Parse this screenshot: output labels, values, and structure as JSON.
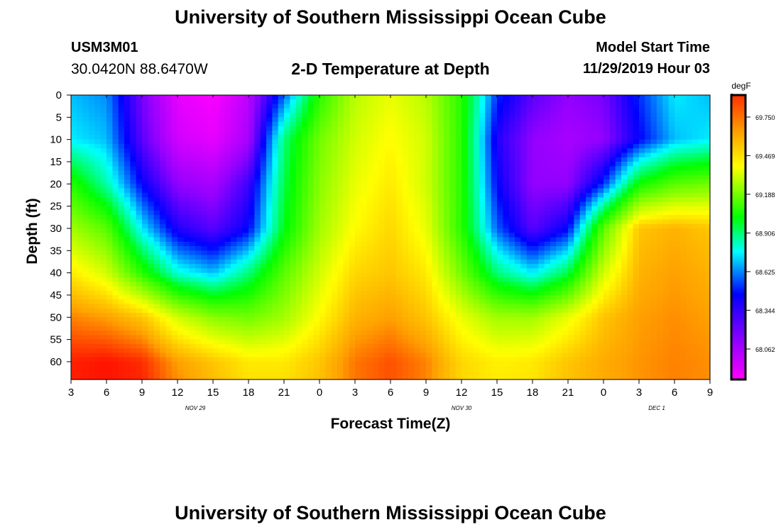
{
  "header": {
    "title": "University of Southern Mississippi Ocean Cube",
    "station_id": "USM3M01",
    "coordinates": "30.0420N 88.6470W",
    "subtitle": "2-D Temperature at Depth",
    "model_start_label": "Model Start Time",
    "model_start_value": "11/29/2019 Hour 03"
  },
  "footer": {
    "title": "University of Southern Mississippi Ocean Cube"
  },
  "chart_data": {
    "type": "heatmap",
    "title": "2-D Temperature at Depth",
    "xlabel": "Forecast Time(Z)",
    "ylabel": "Depth (ft)",
    "x_tick_labels": [
      "3",
      "6",
      "9",
      "12",
      "15",
      "18",
      "21",
      "0",
      "3",
      "6",
      "9",
      "12",
      "15",
      "18",
      "21",
      "0",
      "3",
      "6",
      "9"
    ],
    "x_date_labels": [
      {
        "label": "NOV 29",
        "tick_index": 3.5
      },
      {
        "label": "NOV 30",
        "tick_index": 11
      },
      {
        "label": "DEC 1",
        "tick_index": 16.5
      }
    ],
    "x_range_hours": [
      0,
      54
    ],
    "y_ticks": [
      0,
      5,
      10,
      15,
      20,
      25,
      30,
      35,
      40,
      45,
      50,
      55,
      60
    ],
    "ylim": [
      0,
      64
    ],
    "y_inverted": true,
    "colorbar": {
      "unit": "degF",
      "labels": [
        "69.750",
        "69.469",
        "69.188",
        "68.906",
        "68.625",
        "68.344",
        "68.062"
      ],
      "label_values": [
        69.75,
        69.469,
        69.188,
        68.906,
        68.625,
        68.344,
        68.062
      ],
      "vmin": 67.84,
      "vmax": 69.91
    },
    "colors": [
      "#ff00ff",
      "#9400ff",
      "#0000ff",
      "#00ffff",
      "#00ff00",
      "#80ff00",
      "#ffff00",
      "#ffa000",
      "#ff0000"
    ],
    "temperature_grid": {
      "hours": [
        0,
        3,
        6,
        9,
        12,
        15,
        18,
        21,
        24,
        27,
        30,
        33,
        36,
        39,
        42,
        45,
        48,
        51,
        54
      ],
      "depths": [
        0,
        10,
        20,
        30,
        40,
        50,
        60,
        64
      ],
      "rows": [
        [
          68.55,
          68.5,
          68.15,
          67.9,
          67.85,
          68.0,
          68.45,
          68.95,
          69.25,
          69.35,
          69.25,
          68.95,
          68.4,
          68.2,
          68.1,
          68.15,
          68.4,
          68.6,
          68.55
        ],
        [
          68.6,
          68.55,
          68.2,
          67.95,
          67.9,
          68.05,
          68.75,
          69.1,
          69.3,
          69.4,
          69.3,
          68.95,
          68.3,
          68.1,
          68.05,
          68.1,
          68.35,
          68.55,
          68.6
        ],
        [
          68.95,
          68.7,
          68.35,
          68.1,
          68.05,
          68.25,
          68.8,
          69.15,
          69.35,
          69.45,
          69.3,
          68.95,
          68.35,
          68.1,
          68.1,
          68.4,
          68.9,
          69.05,
          69.1
        ],
        [
          69.2,
          69.05,
          68.6,
          68.3,
          68.2,
          68.35,
          68.85,
          69.2,
          69.4,
          69.5,
          69.35,
          68.95,
          68.45,
          68.2,
          68.35,
          69.05,
          69.55,
          69.6,
          69.55
        ],
        [
          69.45,
          69.3,
          68.95,
          68.65,
          68.55,
          68.75,
          69.05,
          69.3,
          69.5,
          69.55,
          69.45,
          69.1,
          68.75,
          68.6,
          68.8,
          69.3,
          69.6,
          69.65,
          69.6
        ],
        [
          69.7,
          69.65,
          69.55,
          69.3,
          69.15,
          69.1,
          69.2,
          69.4,
          69.6,
          69.65,
          69.55,
          69.35,
          69.2,
          69.2,
          69.35,
          69.55,
          69.65,
          69.68,
          69.65
        ],
        [
          69.86,
          69.88,
          69.84,
          69.65,
          69.55,
          69.45,
          69.45,
          69.55,
          69.72,
          69.78,
          69.7,
          69.5,
          69.43,
          69.45,
          69.55,
          69.62,
          69.67,
          69.7,
          69.68
        ],
        [
          69.86,
          69.88,
          69.85,
          69.68,
          69.57,
          69.47,
          69.47,
          69.56,
          69.72,
          69.78,
          69.7,
          69.5,
          69.44,
          69.46,
          69.56,
          69.62,
          69.67,
          69.7,
          69.68
        ]
      ]
    }
  }
}
